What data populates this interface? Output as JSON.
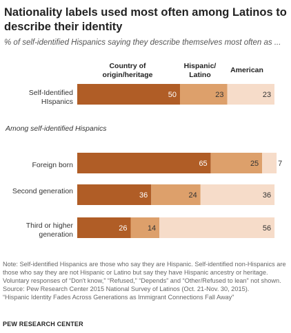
{
  "title": "Nationality labels used most often among Latinos to describe their identity",
  "subtitle": "% of self-identified Hispanics saying they describe themselves most often as ...",
  "column_headers": [
    "Country of origin/heritage",
    "Hispanic/ Latino",
    "American"
  ],
  "section_label": "Among self-identified Hispanics",
  "row_labels": {
    "r0": "Self-Identified HIspanics",
    "r1": "Foreign born",
    "r2": "Second generation",
    "r3": "Third or higher generation"
  },
  "note": "Note: Self-identified Hispanics are those who say they are Hispanic. Self-identified non-Hispanics are those who say they are not Hispanic or Latino but say they have Hispanic ancestry or heritage. Voluntary responses of “Don't know,” “Refused,” “Depends” and “Other/Refused to lean” not shown.",
  "source": "Source: Pew Research Center 2015 National Survey of Latinos (Oct. 21-Nov. 30, 2015).",
  "report": "“Hispanic Identity Fades Across Generations as Immigrant Connections Fall Away”",
  "credit": "PEW RESEARCH CENTER",
  "colors": {
    "country": "#b05d26",
    "hispanic": "#dda06b",
    "american": "#f6dcc9",
    "label_light": "#ffffff",
    "label_dark": "#333333"
  },
  "chart_data": {
    "type": "bar",
    "orientation": "horizontal",
    "stacked": true,
    "categories": [
      "Self-Identified HIspanics",
      "Foreign born",
      "Second generation",
      "Third or higher generation"
    ],
    "series": [
      {
        "name": "Country of origin/heritage",
        "values": [
          50,
          65,
          36,
          26
        ]
      },
      {
        "name": "Hispanic/ Latino",
        "values": [
          23,
          25,
          24,
          14
        ]
      },
      {
        "name": "American",
        "values": [
          23,
          7,
          36,
          56
        ]
      }
    ],
    "xlim": [
      0,
      100
    ]
  }
}
